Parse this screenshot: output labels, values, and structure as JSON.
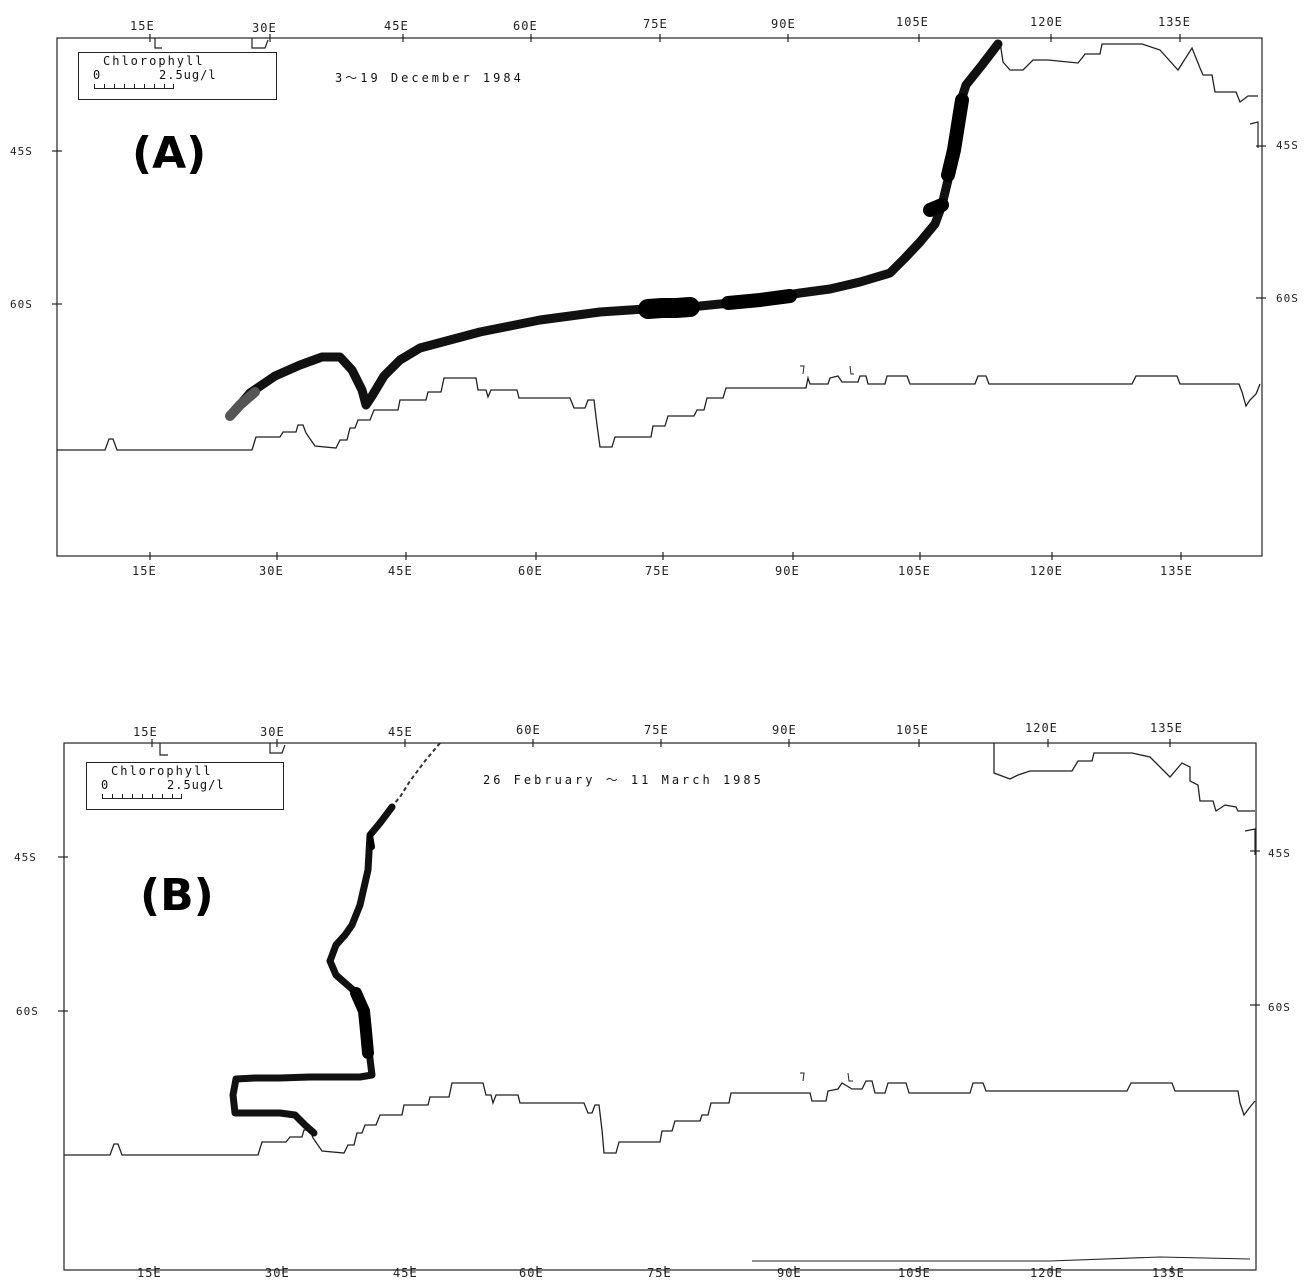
{
  "panels": [
    {
      "id": "A",
      "letter": "(A)",
      "date_range": "3～19  December  1984",
      "legend": {
        "title": "Chlorophyll",
        "min": "0",
        "max": "2.5ug/l"
      },
      "lon_ticks": [
        "15E",
        "30E",
        "45E",
        "60E",
        "75E",
        "90E",
        "105E",
        "120E",
        "135E"
      ],
      "lat_ticks": [
        "45S",
        "60S"
      ]
    },
    {
      "id": "B",
      "letter": "(B)",
      "date_range": "26  February  ～  11  March  1985",
      "legend": {
        "title": "Chlorophyll",
        "min": "0",
        "max": "2.5ug/l"
      },
      "lon_ticks": [
        "15E",
        "30E",
        "45E",
        "60E",
        "75E",
        "90E",
        "105E",
        "120E",
        "135E"
      ],
      "lat_ticks": [
        "45S",
        "60S"
      ]
    }
  ]
}
